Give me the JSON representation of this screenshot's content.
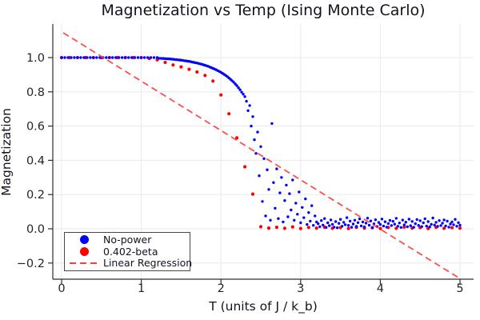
{
  "chart_data": {
    "type": "scatter",
    "title": "Magnetization vs Temp (Ising Monte Carlo)",
    "xlabel": "T (units of J / k_b)",
    "ylabel": "Magnetization",
    "xlim": [
      -0.11,
      5.17
    ],
    "ylim": [
      -0.29,
      1.2
    ],
    "x_ticks": [
      0,
      1,
      2,
      3,
      4,
      5
    ],
    "x_tick_labels": [
      "0",
      "1",
      "2",
      "3",
      "4",
      "5"
    ],
    "y_ticks": [
      -0.2,
      0.0,
      0.2,
      0.4,
      0.6,
      0.8,
      1.0
    ],
    "y_tick_labels": [
      "−0.2",
      "0.0",
      "0.2",
      "0.4",
      "0.6",
      "0.8",
      "1.0"
    ],
    "grid": true,
    "legend_position": "bottom-left",
    "style": {
      "background": "#ffffff",
      "grid_color": "#eaeaea",
      "axis_color": "#2e2e2e",
      "text_color": "#13131f",
      "tick_label_color": "#252525",
      "legend_border_color": "#474747",
      "legend_background": "#ffffff"
    },
    "series": [
      {
        "name": "No-power",
        "type": "scatter",
        "color": "#0000ff",
        "marker_radius": 1.7,
        "points": [
          [
            0,
            1
          ],
          [
            0.04,
            1
          ],
          [
            0.08,
            1
          ],
          [
            0.12,
            1
          ],
          [
            0.16,
            1
          ],
          [
            0.2,
            1
          ],
          [
            0.24,
            1
          ],
          [
            0.28,
            1
          ],
          [
            0.32,
            1
          ],
          [
            0.36,
            1
          ],
          [
            0.4,
            1
          ],
          [
            0.44,
            1
          ],
          [
            0.48,
            1
          ],
          [
            0.52,
            1
          ],
          [
            0.56,
            1
          ],
          [
            0.6,
            1
          ],
          [
            0.64,
            1
          ],
          [
            0.68,
            1
          ],
          [
            0.72,
            1
          ],
          [
            0.76,
            1
          ],
          [
            0.8,
            1
          ],
          [
            0.84,
            1
          ],
          [
            0.88,
            1
          ],
          [
            0.92,
            1
          ],
          [
            0.96,
            1
          ],
          [
            1,
            1
          ],
          [
            1.04,
            1
          ],
          [
            1.08,
            1
          ],
          [
            1.12,
            1
          ],
          [
            1.16,
            1
          ],
          [
            1.2,
            1
          ],
          [
            1.22,
            0.996
          ],
          [
            1.24,
            0.996
          ],
          [
            1.26,
            0.995
          ],
          [
            1.28,
            0.995
          ],
          [
            1.3,
            0.994
          ],
          [
            1.32,
            0.993
          ],
          [
            1.34,
            0.993
          ],
          [
            1.36,
            0.992
          ],
          [
            1.38,
            0.991
          ],
          [
            1.4,
            0.99
          ],
          [
            1.42,
            0.989
          ],
          [
            1.44,
            0.988
          ],
          [
            1.46,
            0.987
          ],
          [
            1.48,
            0.986
          ],
          [
            1.5,
            0.985
          ],
          [
            1.52,
            0.984
          ],
          [
            1.54,
            0.982
          ],
          [
            1.56,
            0.981
          ],
          [
            1.58,
            0.979
          ],
          [
            1.6,
            0.978
          ],
          [
            1.62,
            0.976
          ],
          [
            1.64,
            0.974
          ],
          [
            1.66,
            0.972
          ],
          [
            1.68,
            0.97
          ],
          [
            1.7,
            0.968
          ],
          [
            1.72,
            0.966
          ],
          [
            1.74,
            0.963
          ],
          [
            1.76,
            0.961
          ],
          [
            1.78,
            0.958
          ],
          [
            1.8,
            0.955
          ],
          [
            1.82,
            0.952
          ],
          [
            1.84,
            0.949
          ],
          [
            1.86,
            0.945
          ],
          [
            1.88,
            0.941
          ],
          [
            1.9,
            0.937
          ],
          [
            1.92,
            0.933
          ],
          [
            1.94,
            0.929
          ],
          [
            1.96,
            0.924
          ],
          [
            1.98,
            0.919
          ],
          [
            2,
            0.914
          ],
          [
            2.02,
            0.908
          ],
          [
            2.04,
            0.902
          ],
          [
            2.06,
            0.896
          ],
          [
            2.08,
            0.889
          ],
          [
            2.1,
            0.881
          ],
          [
            2.12,
            0.873
          ],
          [
            2.14,
            0.865
          ],
          [
            2.16,
            0.856
          ],
          [
            2.18,
            0.846
          ],
          [
            2.2,
            0.836
          ],
          [
            2.22,
            0.824
          ],
          [
            2.24,
            0.812
          ],
          [
            2.26,
            0.798
          ],
          [
            2.28,
            0.786
          ],
          [
            2.3,
            0.772
          ],
          [
            2.32,
            0.745
          ],
          [
            2.34,
            0.69
          ],
          [
            2.36,
            0.72
          ],
          [
            2.38,
            0.6
          ],
          [
            2.4,
            0.655
          ],
          [
            2.42,
            0.52
          ],
          [
            2.44,
            0.44
          ],
          [
            2.46,
            0.565
          ],
          [
            2.48,
            0.31
          ],
          [
            2.5,
            0.48
          ],
          [
            2.52,
            0.16
          ],
          [
            2.54,
            0.41
          ],
          [
            2.56,
            0.075
          ],
          [
            2.58,
            0.345
          ],
          [
            2.6,
            0.23
          ],
          [
            2.62,
            0.05
          ],
          [
            2.64,
            0.615
          ],
          [
            2.66,
            0.27
          ],
          [
            2.68,
            0.12
          ],
          [
            2.7,
            0.35
          ],
          [
            2.72,
            0.06
          ],
          [
            2.74,
            0.21
          ],
          [
            2.76,
            0.3
          ],
          [
            2.78,
            0.04
          ],
          [
            2.8,
            0.165
          ],
          [
            2.82,
            0.255
          ],
          [
            2.84,
            0.07
          ],
          [
            2.86,
            0.205
          ],
          [
            2.88,
            0.11
          ],
          [
            2.9,
            0.285
          ],
          [
            2.92,
            0.05
          ],
          [
            2.94,
            0.15
          ],
          [
            2.96,
            0.085
          ],
          [
            2.98,
            0.215
          ],
          [
            3,
            0.035
          ],
          [
            3.02,
            0.125
          ],
          [
            3.04,
            0.065
          ],
          [
            3.06,
            0.175
          ],
          [
            3.08,
            0.025
          ],
          [
            3.1,
            0.095
          ],
          [
            3.12,
            0.045
          ],
          [
            3.14,
            0.135
          ],
          [
            3.16,
            0.02
          ],
          [
            3.18,
            0.075
          ],
          [
            3.2,
            0.04
          ],
          [
            3.22,
            0.03
          ],
          [
            3.24,
            0.012
          ],
          [
            3.26,
            0.048
          ],
          [
            3.28,
            0.022
          ],
          [
            3.3,
            0.06
          ],
          [
            3.32,
            0.008
          ],
          [
            3.34,
            0.035
          ],
          [
            3.36,
            0.018
          ],
          [
            3.38,
            0.052
          ],
          [
            3.4,
            0.026
          ],
          [
            3.42,
            0.01
          ],
          [
            3.44,
            0.042
          ],
          [
            3.46,
            0.006
          ],
          [
            3.48,
            0.032
          ],
          [
            3.5,
            0.055
          ],
          [
            3.52,
            0.015
          ],
          [
            3.54,
            0.038
          ],
          [
            3.56,
            0.024
          ],
          [
            3.58,
            0.065
          ],
          [
            3.6,
            0.02
          ],
          [
            3.62,
            0.045
          ],
          [
            3.64,
            0.009
          ],
          [
            3.66,
            0.028
          ],
          [
            3.68,
            0.05
          ],
          [
            3.7,
            0.014
          ],
          [
            3.72,
            0.036
          ],
          [
            3.74,
            0.058
          ],
          [
            3.76,
            0.017
          ],
          [
            3.78,
            0.04
          ],
          [
            3.8,
            0.011
          ],
          [
            3.82,
            0.033
          ],
          [
            3.84,
            0.062
          ],
          [
            3.86,
            0.021
          ],
          [
            3.88,
            0.046
          ],
          [
            3.9,
            0.007
          ],
          [
            3.92,
            0.029
          ],
          [
            3.94,
            0.053
          ],
          [
            3.96,
            0.013
          ],
          [
            3.98,
            0.037
          ],
          [
            4,
            0.025
          ],
          [
            4.02,
            0.057
          ],
          [
            4.04,
            0.016
          ],
          [
            4.06,
            0.041
          ],
          [
            4.08,
            0.01
          ],
          [
            4.1,
            0.031
          ],
          [
            4.12,
            0.049
          ],
          [
            4.14,
            0.019
          ],
          [
            4.16,
            0.044
          ],
          [
            4.18,
            0.027
          ],
          [
            4.2,
            0.061
          ],
          [
            4.22,
            0.015
          ],
          [
            4.24,
            0.034
          ],
          [
            4.26,
            0.008
          ],
          [
            4.28,
            0.051
          ],
          [
            4.3,
            0.023
          ],
          [
            4.32,
            0.039
          ],
          [
            4.34,
            0.012
          ],
          [
            4.36,
            0.056
          ],
          [
            4.38,
            0.018
          ],
          [
            4.4,
            0.043
          ],
          [
            4.42,
            0.009
          ],
          [
            4.44,
            0.03
          ],
          [
            4.46,
            0.054
          ],
          [
            4.48,
            0.02
          ],
          [
            4.5,
            0.047
          ],
          [
            4.52,
            0.013
          ],
          [
            4.54,
            0.035
          ],
          [
            4.56,
            0.059
          ],
          [
            4.58,
            0.016
          ],
          [
            4.6,
            0.042
          ],
          [
            4.62,
            0.011
          ],
          [
            4.64,
            0.026
          ],
          [
            4.66,
            0.063
          ],
          [
            4.68,
            0.022
          ],
          [
            4.7,
            0.038
          ],
          [
            4.72,
            0.014
          ],
          [
            4.74,
            0.048
          ],
          [
            4.76,
            0.019
          ],
          [
            4.78,
            0.033
          ],
          [
            4.8,
            0.052
          ],
          [
            4.82,
            0.017
          ],
          [
            4.84,
            0.045
          ],
          [
            4.86,
            0.01
          ],
          [
            4.88,
            0.028
          ],
          [
            4.9,
            0.04
          ],
          [
            4.92,
            0.024
          ],
          [
            4.94,
            0.055
          ],
          [
            4.96,
            0.015
          ],
          [
            4.98,
            0.036
          ],
          [
            5,
            0.021
          ]
        ]
      },
      {
        "name": "0.402-beta",
        "type": "scatter",
        "color": "#ff0000",
        "marker_radius": 2.1,
        "points": [
          [
            0,
            1
          ],
          [
            0.1,
            1
          ],
          [
            0.2,
            1
          ],
          [
            0.3,
            1
          ],
          [
            0.4,
            1
          ],
          [
            0.5,
            1
          ],
          [
            0.6,
            1
          ],
          [
            0.7,
            1
          ],
          [
            0.8,
            1
          ],
          [
            0.9,
            1
          ],
          [
            1,
            1
          ],
          [
            1.1,
            0.995
          ],
          [
            1.2,
            0.987
          ],
          [
            1.3,
            0.972
          ],
          [
            1.4,
            0.957
          ],
          [
            1.5,
            0.946
          ],
          [
            1.6,
            0.932
          ],
          [
            1.7,
            0.916
          ],
          [
            1.8,
            0.896
          ],
          [
            1.9,
            0.863
          ],
          [
            2,
            0.782
          ],
          [
            2.1,
            0.672
          ],
          [
            2.2,
            0.531
          ],
          [
            2.3,
            0.362
          ],
          [
            2.4,
            0.203
          ],
          [
            2.5,
            0.012
          ],
          [
            2.6,
            0.004
          ],
          [
            2.7,
            0.009
          ],
          [
            2.8,
            0.003
          ],
          [
            2.9,
            0.011
          ],
          [
            3,
            0.002
          ],
          [
            3.1,
            0.008
          ],
          [
            3.2,
            0.004
          ],
          [
            3.3,
            0.01
          ],
          [
            3.4,
            0.003
          ],
          [
            3.5,
            0.007
          ],
          [
            3.6,
            0.002
          ],
          [
            3.7,
            0.009
          ],
          [
            3.8,
            0.004
          ],
          [
            3.9,
            0.006
          ],
          [
            4,
            0.002
          ],
          [
            4.1,
            0.008
          ],
          [
            4.2,
            0.003
          ],
          [
            4.3,
            0.01
          ],
          [
            4.4,
            0.004
          ],
          [
            4.5,
            0.007
          ],
          [
            4.6,
            0.002
          ],
          [
            4.7,
            0.009
          ],
          [
            4.8,
            0.003
          ],
          [
            4.9,
            0.006
          ],
          [
            5,
            0.004
          ]
        ]
      },
      {
        "name": "Linear Regression",
        "type": "dashed-line",
        "color": "#ff3b3b",
        "slope_estimate": -0.287,
        "intercept_estimate": 1.145,
        "points": [
          [
            0.02,
            1.145
          ],
          [
            4.98,
            -0.285
          ]
        ]
      }
    ]
  }
}
